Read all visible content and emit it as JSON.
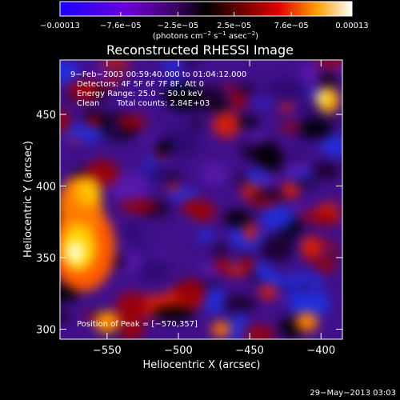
{
  "chart_data": {
    "type": "heatmap",
    "title": "Reconstructed RHESSI Image",
    "xlabel": "Heliocentric X (arcsec)",
    "ylabel": "Heliocentric Y (arcsec)",
    "xlim": [
      -583,
      -385
    ],
    "ylim": [
      293,
      488
    ],
    "x_ticks": [
      -550,
      -500,
      -450,
      -400
    ],
    "y_ticks": [
      300,
      350,
      400,
      450
    ],
    "x_tick_labels": [
      "−550",
      "−500",
      "−450",
      "−400"
    ],
    "y_tick_labels": [
      "300",
      "350",
      "400",
      "450"
    ],
    "colorbar": {
      "min": -0.00013,
      "max": 0.00013,
      "tick_values": [
        -0.00013,
        -7.6e-05,
        -2.5e-05,
        2.5e-05,
        7.6e-05,
        0.00013
      ],
      "tick_labels": [
        "−0.00013",
        "−7.6e−05",
        "−2.5e−05",
        "2.5e−05",
        "7.6e−05",
        "0.00013"
      ],
      "unit_parts": [
        "(photons cm",
        "−2",
        " s",
        "−1",
        " asec",
        "−2",
        ")"
      ]
    },
    "annotations": {
      "time_range": "9−Feb−2003 00:59:40.000 to 01:04:12.000",
      "detectors": "Detectors: 4F 5F 6F 7F 8F, Att 0",
      "energy_range": "Energy Range: 25.0 − 50.0 keV",
      "clean_label": "Clean",
      "total_counts": "Total counts: 2.84E+03",
      "peak": "Position of Peak = [−570,357]",
      "footer_date": "29−May−2013 03:03"
    },
    "peak_position": [
      -570,
      357
    ],
    "colormap": [
      "#0000ff",
      "#4b00c8",
      "#2a003c",
      "#000000",
      "#3a0000",
      "#c80000",
      "#ff6a00",
      "#ffd200",
      "#ffffff"
    ]
  }
}
